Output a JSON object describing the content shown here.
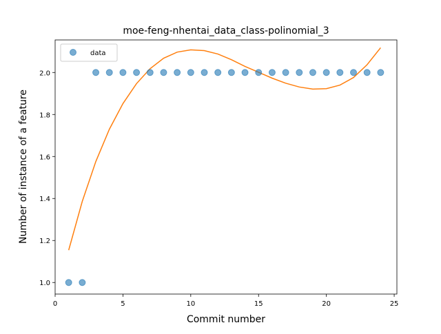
{
  "chart_data": {
    "type": "scatter",
    "title": "moe-feng-nhentai_data_class-polinomial_3",
    "xlabel": "Commit number",
    "ylabel": "Number of instance of a feature",
    "xlim": [
      0.0,
      25.2
    ],
    "ylim": [
      0.945,
      2.155
    ],
    "xticks": [
      0,
      5,
      10,
      15,
      20,
      25
    ],
    "yticks": [
      1.0,
      1.2,
      1.4,
      1.6,
      1.8,
      2.0
    ],
    "ytick_labels": [
      "1.0",
      "1.2",
      "1.4",
      "1.6",
      "1.8",
      "2.0"
    ],
    "grid": false,
    "legend_position": "top-left",
    "series": [
      {
        "name": "data",
        "kind": "points",
        "color": "#1f77b4",
        "x": [
          1,
          2,
          3,
          4,
          5,
          6,
          7,
          8,
          9,
          10,
          11,
          12,
          13,
          14,
          15,
          16,
          17,
          18,
          19,
          20,
          21,
          22,
          23,
          24
        ],
        "y": [
          1,
          1,
          2,
          2,
          2,
          2,
          2,
          2,
          2,
          2,
          2,
          2,
          2,
          2,
          2,
          2,
          2,
          2,
          2,
          2,
          2,
          2,
          2,
          2
        ]
      },
      {
        "kind": "line",
        "color": "#ff7f0e",
        "x": [
          1,
          2,
          3,
          4,
          5,
          6,
          7,
          8,
          9,
          10,
          11,
          12,
          13,
          14,
          15,
          16,
          17,
          18,
          19,
          20,
          21,
          22,
          23,
          24
        ],
        "y": [
          1.154,
          1.386,
          1.576,
          1.73,
          1.852,
          1.947,
          2.018,
          2.068,
          2.097,
          2.108,
          2.104,
          2.088,
          2.061,
          2.029,
          2.001,
          1.973,
          1.949,
          1.931,
          1.921,
          1.923,
          1.94,
          1.976,
          2.037,
          2.118
        ]
      }
    ]
  }
}
